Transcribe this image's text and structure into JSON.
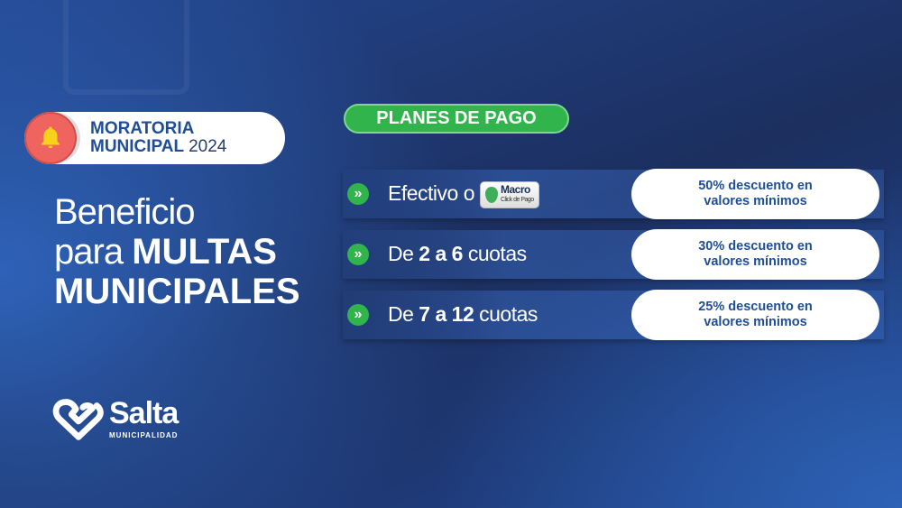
{
  "header": {
    "line1": "MORATORIA",
    "line2": "MUNICIPAL",
    "year": "2024",
    "icon": "bell-icon"
  },
  "headline": {
    "line1": "Beneficio",
    "line2_light": "para",
    "line2_bold": "MULTAS",
    "line3": "MUNICIPALES"
  },
  "planes_label": "PLANES DE PAGO",
  "plans": [
    {
      "prefix": "Efectivo o",
      "bold": "",
      "suffix": "",
      "badge": {
        "name": "Macro",
        "sub": "Click de Pago"
      },
      "discount_l1": "50% descuento en",
      "discount_l2": "valores mínimos"
    },
    {
      "prefix": "De",
      "bold": "2 a 6",
      "suffix": "cuotas",
      "discount_l1": "30% descuento en",
      "discount_l2": "valores mínimos"
    },
    {
      "prefix": "De",
      "bold": "7 a 12",
      "suffix": "cuotas",
      "discount_l1": "25% descuento en",
      "discount_l2": "valores mínimos"
    }
  ],
  "chevron": "»",
  "logo": {
    "name": "Salta",
    "sub": "MUNICIPALIDAD"
  },
  "colors": {
    "green": "#31b44b",
    "blue_text": "#1f4e96",
    "bell_bg": "#f0645f",
    "bell": "#f7d21a"
  }
}
